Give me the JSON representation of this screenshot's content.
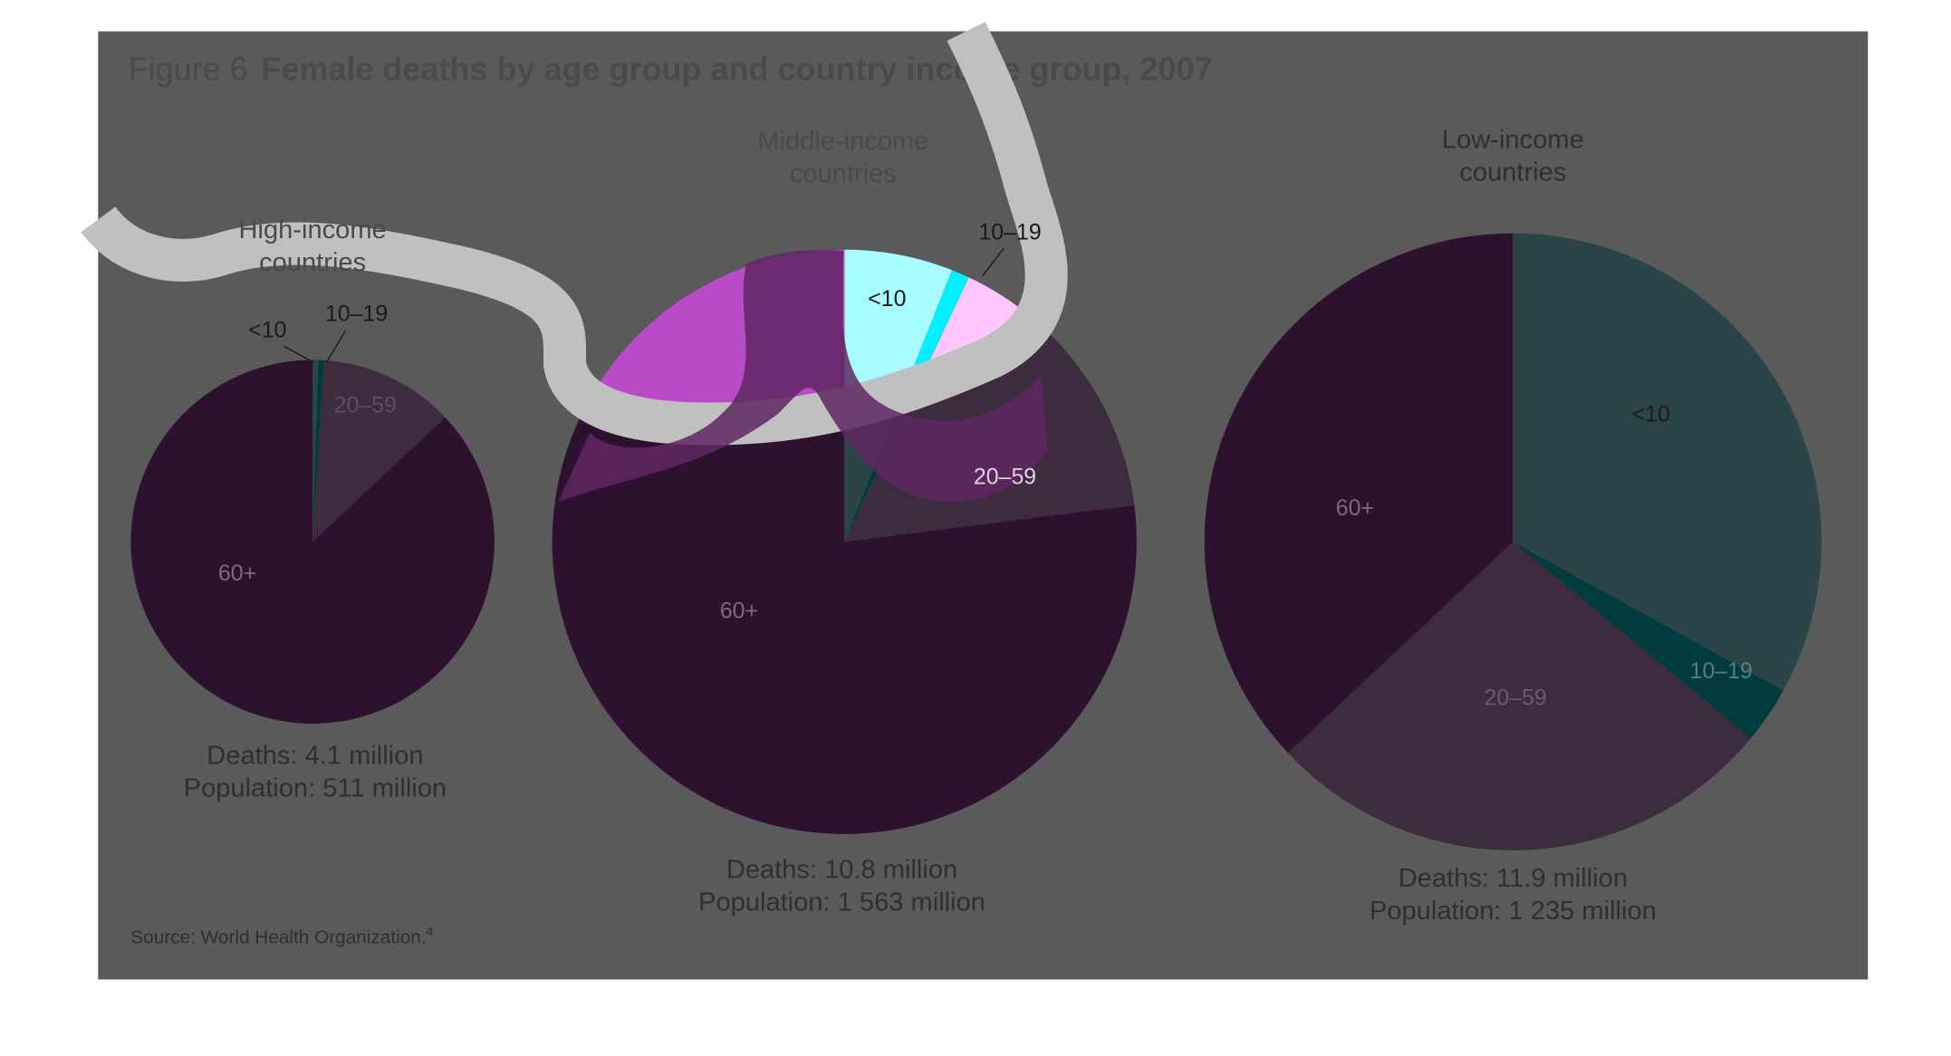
{
  "figure": {
    "number": "Figure 6",
    "title": "Female deaths by age group and country income group, 2007",
    "source": "Source: World Health Organization.",
    "source_ref": "4"
  },
  "colors": {
    "background": "#5a5a5a",
    "age_60_plus": "#2d1230",
    "age_20_59": "#3d2c3e",
    "age_under_10": "#2b4448",
    "age_10_19": "#003c3e",
    "highlight_60_plus": "#5f2762",
    "highlight_magenta": "#b84cc6",
    "highlight_20_59": "#ffc6ff",
    "highlight_20_59_muted": "#836686",
    "highlight_under_10": "#a8fbff",
    "highlight_10_19": "#00f0ff",
    "swoosh_gray": "#c0c0c0",
    "swoosh_white": "#ffffff"
  },
  "chart_data": [
    {
      "type": "pie",
      "title": "High-income countries",
      "categories": [
        "<10",
        "10–19",
        "20–59",
        "60+"
      ],
      "values": [
        0.5,
        0.5,
        12,
        87
      ],
      "unit": "percent of deaths",
      "caption_deaths": "Deaths: 4.1 million",
      "caption_population": "Population: 511 million"
    },
    {
      "type": "pie",
      "title": "Middle-income countries",
      "categories": [
        "<10",
        "10–19",
        "20–59",
        "60+"
      ],
      "values": [
        6,
        1,
        16,
        77
      ],
      "unit": "percent of deaths",
      "caption_deaths": "Deaths: 10.8 million",
      "caption_population": "Population: 1 563 million"
    },
    {
      "type": "pie",
      "title": "Low-income countries",
      "categories": [
        "<10",
        "10–19",
        "20–59",
        "60+"
      ],
      "values": [
        33,
        3,
        27,
        37
      ],
      "unit": "percent of deaths",
      "caption_deaths": "Deaths: 11.9 million",
      "caption_population": "Population: 1 235 million"
    }
  ]
}
